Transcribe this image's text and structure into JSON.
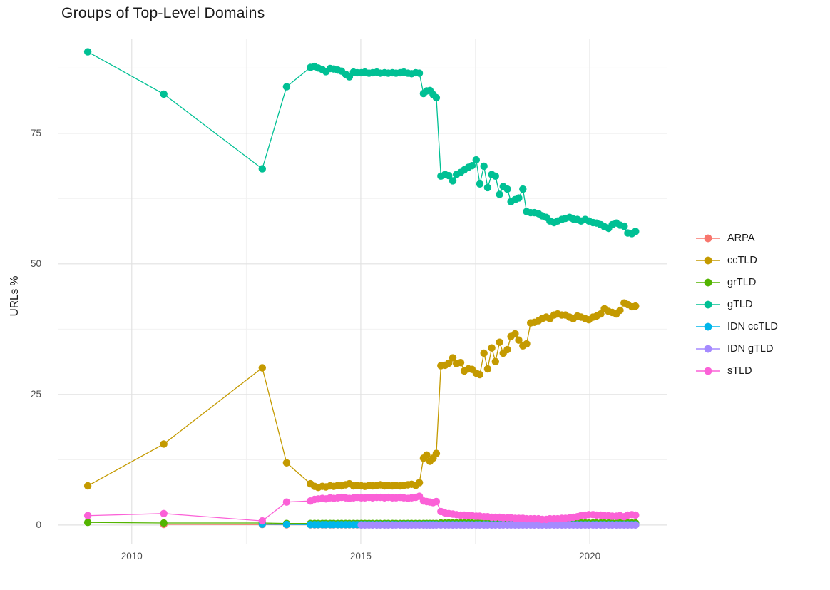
{
  "title": "Groups of Top-Level Domains",
  "chart_data": {
    "type": "line",
    "title": "Groups of Top-Level Domains",
    "x_axis": {
      "label": "",
      "ticks": [
        2010,
        2015,
        2020
      ],
      "minor_ticks": [
        2012.5,
        2017.5
      ],
      "range": [
        2008.4,
        2021.68
      ]
    },
    "y_axis": {
      "label": "URLs %",
      "ticks": [
        0,
        25,
        50,
        75
      ],
      "minor_ticks": [
        12.5,
        37.5,
        62.5,
        87.5
      ],
      "range": [
        -3.7,
        93
      ]
    },
    "grid": "on",
    "legend_position": "right",
    "legend_entries": [
      "ARPA",
      "ccTLD",
      "grTLD",
      "gTLD",
      "IDN ccTLD",
      "IDN gTLD",
      "sTLD"
    ],
    "x": [
      2009.04,
      2010.7,
      2012.85,
      2013.38,
      2013.9,
      2013.99,
      2014.07,
      2014.16,
      2014.24,
      2014.33,
      2014.41,
      2014.5,
      2014.58,
      2014.67,
      2014.75,
      2014.84,
      2014.92,
      2015.01,
      2015.09,
      2015.18,
      2015.26,
      2015.35,
      2015.43,
      2015.52,
      2015.6,
      2015.69,
      2015.77,
      2015.86,
      2015.94,
      2016.03,
      2016.11,
      2016.2,
      2016.28,
      2016.37,
      2016.44,
      2016.51,
      2016.58,
      2016.65,
      2016.75,
      2016.84,
      2016.92,
      2017.01,
      2017.09,
      2017.18,
      2017.26,
      2017.35,
      2017.43,
      2017.52,
      2017.6,
      2017.69,
      2017.77,
      2017.86,
      2017.94,
      2018.03,
      2018.11,
      2018.2,
      2018.28,
      2018.37,
      2018.45,
      2018.54,
      2018.62,
      2018.71,
      2018.79,
      2018.88,
      2018.96,
      2019.05,
      2019.13,
      2019.22,
      2019.3,
      2019.39,
      2019.47,
      2019.56,
      2019.64,
      2019.73,
      2019.81,
      2019.9,
      2019.98,
      2020.07,
      2020.15,
      2020.24,
      2020.32,
      2020.41,
      2020.49,
      2020.58,
      2020.66,
      2020.75,
      2020.83,
      2020.92,
      2021.0
    ],
    "series": [
      {
        "name": "ARPA",
        "color": "#F8766D",
        "start_index": 1,
        "values": [
          0.12,
          0.1,
          0.05,
          0.05,
          0.05,
          0.05,
          0.05,
          0.05,
          0.05,
          0.05,
          0.05,
          0.05,
          0.05,
          0.05,
          0.05,
          0.05,
          0.05,
          0.05,
          0.05,
          0.05,
          0.05,
          0.05,
          0.05,
          0.05,
          0.05,
          0.05,
          0.05,
          0.05,
          0.05,
          0.05,
          0.05,
          0.05,
          0.05,
          0.05,
          0.05,
          0.05,
          0.05,
          0.05,
          0.05,
          0.05,
          0.05,
          0.05,
          0.05,
          0.05,
          0.05,
          0.05,
          0.05,
          0.05,
          0.05,
          0.05,
          0.05,
          0.05,
          0.05,
          0.05,
          0.05,
          0.05,
          0.05,
          0.05,
          0.05,
          0.05,
          0.05,
          0.05,
          0.05,
          0.05,
          0.05,
          0.05,
          0.05,
          0.05,
          0.05,
          0.05,
          0.05,
          0.05,
          0.05,
          0.05,
          0.05,
          0.05,
          0.05,
          0.05,
          0.05,
          0.05,
          0.05,
          0.05,
          0.05,
          0.05,
          0.05,
          0.05,
          0.05,
          0.05
        ]
      },
      {
        "name": "ccTLD",
        "color": "#C49A00",
        "start_index": 0,
        "values": [
          7.5,
          15.5,
          30.1,
          11.9,
          7.9,
          7.4,
          7.2,
          7.4,
          7.3,
          7.5,
          7.4,
          7.6,
          7.5,
          7.7,
          7.9,
          7.5,
          7.6,
          7.5,
          7.4,
          7.6,
          7.5,
          7.6,
          7.7,
          7.5,
          7.6,
          7.5,
          7.6,
          7.5,
          7.6,
          7.7,
          7.8,
          7.6,
          8.1,
          12.8,
          13.4,
          12.2,
          12.8,
          13.7,
          30.5,
          30.6,
          31.0,
          32.0,
          30.9,
          31.1,
          29.5,
          29.9,
          29.8,
          29.1,
          28.8,
          32.9,
          29.9,
          33.9,
          31.3,
          35.0,
          32.9,
          33.6,
          36.1,
          36.6,
          35.4,
          34.3,
          34.7,
          38.7,
          38.8,
          39.1,
          39.5,
          39.8,
          39.5,
          40.2,
          40.4,
          40.2,
          40.2,
          39.8,
          39.5,
          40.0,
          39.8,
          39.5,
          39.3,
          39.8,
          40.0,
          40.4,
          41.4,
          40.9,
          40.7,
          40.4,
          41.1,
          42.5,
          42.2,
          41.8,
          41.9
        ]
      },
      {
        "name": "grTLD",
        "color": "#53B400",
        "start_index": 0,
        "values": [
          0.5,
          0.4,
          0.4,
          0.3,
          0.3,
          0.3,
          0.3,
          0.3,
          0.3,
          0.3,
          0.3,
          0.3,
          0.3,
          0.3,
          0.3,
          0.3,
          0.3,
          0.3,
          0.3,
          0.3,
          0.3,
          0.3,
          0.3,
          0.3,
          0.3,
          0.3,
          0.3,
          0.3,
          0.3,
          0.3,
          0.3,
          0.3,
          0.3,
          0.3,
          0.3,
          0.3,
          0.3,
          0.3,
          0.4,
          0.4,
          0.4,
          0.4,
          0.4,
          0.4,
          0.4,
          0.4,
          0.4,
          0.4,
          0.4,
          0.4,
          0.4,
          0.4,
          0.4,
          0.4,
          0.4,
          0.4,
          0.4,
          0.4,
          0.4,
          0.4,
          0.4,
          0.4,
          0.4,
          0.4,
          0.4,
          0.4,
          0.4,
          0.4,
          0.4,
          0.4,
          0.4,
          0.4,
          0.4,
          0.4,
          0.4,
          0.4,
          0.4,
          0.4,
          0.4,
          0.4,
          0.4,
          0.4,
          0.4,
          0.4,
          0.4,
          0.4,
          0.4,
          0.4,
          0.4
        ]
      },
      {
        "name": "gTLD",
        "color": "#00C094",
        "start_index": 0,
        "values": [
          90.6,
          82.5,
          68.2,
          83.9,
          87.6,
          87.8,
          87.5,
          87.2,
          86.8,
          87.4,
          87.3,
          87.1,
          86.9,
          86.3,
          85.8,
          86.7,
          86.6,
          86.6,
          86.7,
          86.5,
          86.6,
          86.7,
          86.5,
          86.6,
          86.5,
          86.6,
          86.5,
          86.6,
          86.7,
          86.5,
          86.4,
          86.6,
          86.5,
          82.6,
          83.1,
          83.2,
          82.4,
          81.8,
          66.8,
          67.1,
          66.9,
          65.9,
          67.1,
          67.5,
          68.0,
          68.5,
          68.8,
          69.9,
          65.3,
          68.7,
          64.6,
          67.1,
          66.8,
          63.3,
          64.8,
          64.3,
          61.9,
          62.3,
          62.6,
          64.3,
          60.0,
          59.8,
          59.8,
          59.6,
          59.2,
          58.9,
          58.2,
          57.9,
          58.2,
          58.5,
          58.7,
          58.9,
          58.6,
          58.5,
          58.2,
          58.5,
          58.2,
          57.9,
          57.8,
          57.5,
          57.1,
          56.8,
          57.5,
          57.8,
          57.4,
          57.2,
          55.9,
          55.8,
          56.2
        ]
      },
      {
        "name": "IDN ccTLD",
        "color": "#00B6EB",
        "start_index": 2,
        "values": [
          0.15,
          0.12,
          0.08,
          0.08,
          0.08,
          0.08,
          0.08,
          0.08,
          0.08,
          0.08,
          0.08,
          0.08,
          0.08,
          0.08,
          0.08,
          0.08,
          0.08,
          0.08,
          0.08,
          0.08,
          0.08,
          0.08,
          0.08,
          0.08,
          0.08,
          0.08,
          0.08,
          0.08,
          0.08,
          0.08,
          0.08,
          0.08,
          0.08,
          0.08,
          0.08,
          0.08,
          0.08,
          0.08,
          0.08,
          0.08,
          0.08,
          0.08,
          0.08,
          0.08,
          0.08,
          0.08,
          0.08,
          0.08,
          0.08,
          0.08,
          0.08,
          0.08,
          0.08,
          0.08,
          0.08,
          0.08,
          0.08,
          0.08,
          0.08,
          0.08,
          0.08,
          0.08,
          0.08,
          0.08,
          0.08,
          0.08,
          0.08,
          0.08,
          0.08,
          0.08,
          0.08,
          0.08,
          0.08,
          0.08,
          0.08,
          0.08,
          0.08,
          0.08,
          0.08,
          0.08,
          0.08,
          0.08,
          0.08,
          0.08,
          0.08,
          0.08,
          0.08
        ]
      },
      {
        "name": "IDN gTLD",
        "color": "#A58AFF",
        "start_index": 17,
        "values": [
          0.02,
          0.02,
          0.02,
          0.02,
          0.02,
          0.02,
          0.02,
          0.02,
          0.02,
          0.02,
          0.02,
          0.02,
          0.02,
          0.02,
          0.02,
          0.02,
          0.02,
          0.02,
          0.02,
          0.02,
          0.02,
          0.02,
          0.02,
          0.02,
          0.02,
          0.02,
          0.02,
          0.02,
          0.02,
          0.02,
          0.02,
          0.02,
          0.02,
          0.02,
          0.02,
          0.02,
          0.02,
          0.02,
          0.02,
          0.02,
          0.02,
          0.02,
          0.02,
          0.02,
          0.02,
          0.02,
          0.02,
          0.02,
          0.02,
          0.02,
          0.02,
          0.02,
          0.02,
          0.02,
          0.02,
          0.02,
          0.02,
          0.02,
          0.02,
          0.02,
          0.02,
          0.02,
          0.02,
          0.02,
          0.02,
          0.02,
          0.02,
          0.02,
          0.02,
          0.02,
          0.02,
          0.02
        ]
      },
      {
        "name": "sTLD",
        "color": "#FB61D7",
        "start_index": 0,
        "values": [
          1.8,
          2.2,
          0.8,
          4.4,
          4.6,
          4.9,
          5.0,
          5.1,
          5.0,
          5.2,
          5.1,
          5.2,
          5.3,
          5.2,
          5.1,
          5.2,
          5.3,
          5.2,
          5.2,
          5.3,
          5.2,
          5.3,
          5.3,
          5.2,
          5.3,
          5.2,
          5.2,
          5.3,
          5.2,
          5.1,
          5.2,
          5.3,
          5.5,
          4.6,
          4.5,
          4.4,
          4.3,
          4.5,
          2.6,
          2.3,
          2.2,
          2.1,
          2.0,
          1.9,
          1.9,
          1.8,
          1.8,
          1.7,
          1.7,
          1.6,
          1.6,
          1.5,
          1.5,
          1.5,
          1.4,
          1.4,
          1.4,
          1.3,
          1.3,
          1.3,
          1.2,
          1.2,
          1.2,
          1.2,
          1.1,
          1.1,
          1.2,
          1.2,
          1.2,
          1.3,
          1.3,
          1.4,
          1.5,
          1.6,
          1.8,
          1.9,
          2.0,
          2.0,
          1.9,
          1.9,
          1.8,
          1.8,
          1.7,
          1.7,
          1.8,
          1.6,
          1.9,
          2.0,
          1.9
        ]
      }
    ]
  }
}
